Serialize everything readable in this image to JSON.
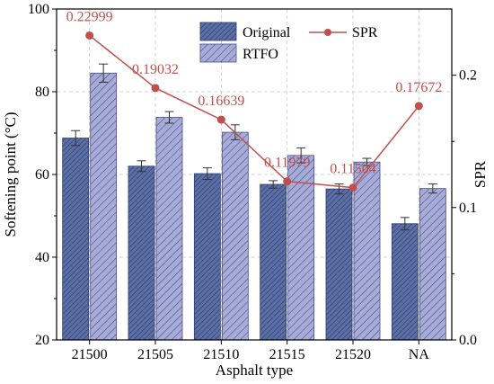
{
  "chart_data": {
    "type": "bar",
    "xlabel": "Asphalt type",
    "ylabel": "Softening point (°C)",
    "y2label": "SPR",
    "categories": [
      "21500",
      "21505",
      "21510",
      "21515",
      "21520",
      "NA"
    ],
    "ylim": [
      20,
      100
    ],
    "yticks": [
      20,
      40,
      60,
      80,
      100
    ],
    "y2lim": [
      0.0,
      0.25
    ],
    "y2ticks": [
      "0.0",
      "0.1",
      "0.2"
    ],
    "y2tick_values": [
      0.0,
      0.1,
      0.2
    ],
    "grid": true,
    "legend_position": "top-center",
    "series": [
      {
        "name": "Original",
        "type": "bar",
        "axis": "left",
        "color": "#5b6fa6",
        "hatch": "dense-diagonal",
        "values": [
          68.8,
          62.0,
          60.2,
          57.6,
          56.5,
          48.1
        ],
        "errors": [
          1.8,
          1.3,
          1.4,
          0.9,
          1.2,
          1.5
        ]
      },
      {
        "name": "RTFO",
        "type": "bar",
        "axis": "left",
        "color": "#a7abd8",
        "hatch": "diagonal",
        "values": [
          84.5,
          73.8,
          70.2,
          64.6,
          63.0,
          56.6
        ],
        "errors": [
          2.2,
          1.4,
          1.8,
          1.8,
          0.9,
          1.1
        ]
      },
      {
        "name": "SPR",
        "type": "line",
        "axis": "right",
        "color": "#c0504d",
        "marker": "circle",
        "values": [
          0.22999,
          0.19032,
          0.16639,
          0.11979,
          0.11504,
          0.17672
        ],
        "labels": [
          "0.22999",
          "0.19032",
          "0.16639",
          "0.11979",
          "0.11504",
          "0.17672"
        ]
      }
    ]
  }
}
